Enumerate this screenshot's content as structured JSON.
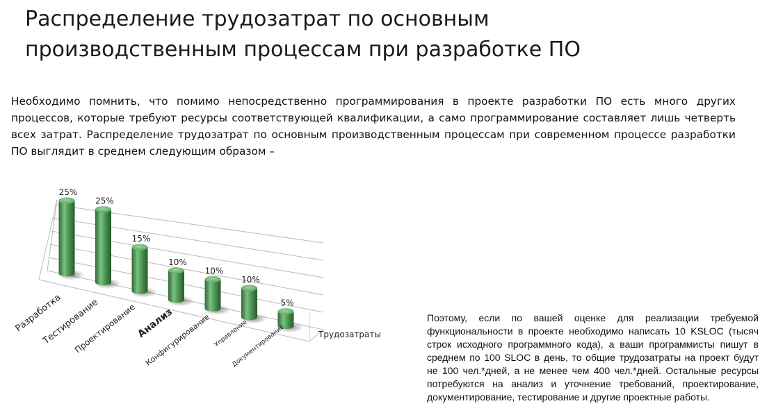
{
  "title": {
    "line1": "Распределение трудозатрат по основным",
    "line2": "производственным процессам при разработке ПО"
  },
  "intro_text": "Необходимо помнить, что помимо непосредственно программирования в проекте разработки ПО есть много других процессов, которые требуют ресурсы соответствующей квалификации, а само программирование составляет лишь четверть всех затрат. Распределение трудозатрат по основным производственным процессам при современном процессе разработки ПО выглядит в среднем следующим образом –",
  "side_text": "Поэтому, если по вашей оценке для реализации требуемой функциональности в проекте необходимо написать 10 KSLOC (тысяч строк исходного программного кода), а ваши программисты пишут в среднем по 100 SLOC в день, то общие трудозатраты на проект будут не 100 чел.*дней, а не менее чем 400 чел.*дней. Остальные ресурсы потребуются на анализ и уточнение требований, проектирование, документирование, тестирование и другие проектные работы.",
  "chart_data": {
    "type": "bar",
    "style": "3d-cylinder",
    "categories": [
      "Разработка",
      "Тестирование",
      "Проектирование",
      "Анализ",
      "Конфигурирование",
      "Управление",
      "Документирование"
    ],
    "series": [
      {
        "name": "Трудозатраты",
        "values": [
          25,
          25,
          15,
          10,
          10,
          10,
          5
        ]
      }
    ],
    "value_labels": [
      "25%",
      "25%",
      "15%",
      "10%",
      "10%",
      "10%",
      "5%"
    ],
    "ylim": [
      0,
      25
    ],
    "grid": true,
    "legend": "right",
    "bar_color": "#4f9a55"
  }
}
